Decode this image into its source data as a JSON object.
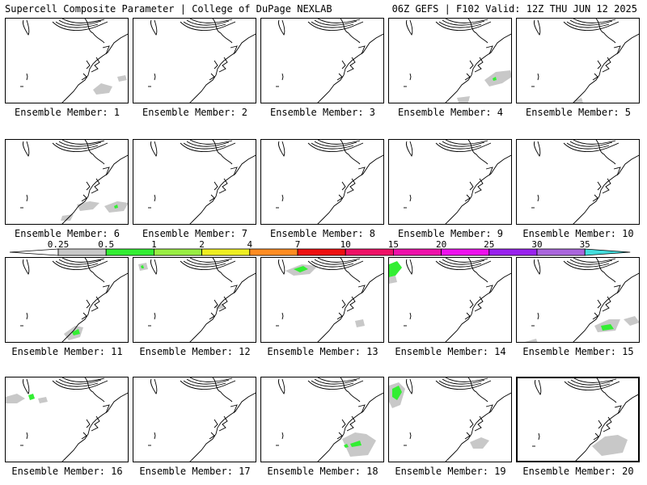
{
  "header": {
    "left": "Supercell Composite Parameter | College of DuPage NEXLAB",
    "right": "06Z GEFS | F102 Valid: 12Z THU JUN 12 2025"
  },
  "legend": {
    "ticks": [
      "0.25",
      "0.5",
      "1",
      "2",
      "4",
      "7",
      "10",
      "15",
      "20",
      "25",
      "30",
      "35"
    ],
    "colors": [
      "#c8c8c8",
      "#33ee33",
      "#99ee44",
      "#eeee22",
      "#ff8c22",
      "#ee1111",
      "#ee1166",
      "#ee11aa",
      "#ee11ee",
      "#9922ee",
      "#aa66dd",
      "#44dddd"
    ]
  },
  "caption_prefix": "Ensemble Member: ",
  "selected_member": 20,
  "members": [
    {
      "label": "Ensemble Member: 1",
      "blobs": [
        {
          "c": "gray",
          "pts": [
            [
              108,
              88
            ],
            [
              118,
              80
            ],
            [
              132,
              84
            ],
            [
              128,
              92
            ],
            [
              112,
              94
            ]
          ]
        },
        {
          "c": "gray",
          "pts": [
            [
              138,
              72
            ],
            [
              148,
              70
            ],
            [
              150,
              76
            ],
            [
              140,
              78
            ]
          ]
        }
      ]
    },
    {
      "label": "Ensemble Member: 2",
      "blobs": []
    },
    {
      "label": "Ensemble Member: 3",
      "blobs": []
    },
    {
      "label": "Ensemble Member: 4",
      "blobs": [
        {
          "c": "gray",
          "pts": [
            [
              118,
              76
            ],
            [
              132,
              66
            ],
            [
              150,
              64
            ],
            [
              152,
              72
            ],
            [
              140,
              80
            ],
            [
              124,
              84
            ]
          ]
        },
        {
          "c": "green",
          "pts": [
            [
              128,
              74
            ],
            [
              132,
              72
            ],
            [
              133,
              76
            ],
            [
              129,
              77
            ]
          ]
        },
        {
          "c": "gray",
          "pts": [
            [
              84,
              98
            ],
            [
              100,
              96
            ],
            [
              98,
              104
            ],
            [
              86,
              104
            ]
          ]
        }
      ]
    },
    {
      "label": "Ensemble Member: 5",
      "blobs": [
        {
          "c": "gray",
          "pts": [
            [
              70,
              102
            ],
            [
              80,
              98
            ],
            [
              82,
              104
            ],
            [
              72,
              105
            ]
          ]
        }
      ]
    },
    {
      "label": "Ensemble Member: 6",
      "blobs": [
        {
          "c": "gray",
          "pts": [
            [
              88,
              80
            ],
            [
              104,
              76
            ],
            [
              116,
              78
            ],
            [
              108,
              86
            ],
            [
              92,
              88
            ]
          ]
        },
        {
          "c": "gray",
          "pts": [
            [
              122,
              82
            ],
            [
              138,
              76
            ],
            [
              152,
              78
            ],
            [
              146,
              88
            ],
            [
              128,
              90
            ]
          ]
        },
        {
          "c": "green",
          "pts": [
            [
              134,
              82
            ],
            [
              138,
              80
            ],
            [
              139,
              84
            ],
            [
              135,
              85
            ]
          ]
        },
        {
          "c": "gray",
          "pts": [
            [
              70,
              94
            ],
            [
              84,
              92
            ],
            [
              80,
              100
            ],
            [
              68,
              100
            ]
          ]
        }
      ]
    },
    {
      "label": "Ensemble Member: 7",
      "blobs": []
    },
    {
      "label": "Ensemble Member: 8",
      "blobs": []
    },
    {
      "label": "Ensemble Member: 9",
      "blobs": []
    },
    {
      "label": "Ensemble Member: 10",
      "blobs": []
    },
    {
      "label": "Ensemble Member: 11",
      "blobs": [
        {
          "c": "gray",
          "pts": [
            [
              72,
              94
            ],
            [
              86,
              84
            ],
            [
              96,
              86
            ],
            [
              92,
              98
            ],
            [
              78,
              102
            ]
          ]
        },
        {
          "c": "green",
          "pts": [
            [
              82,
              92
            ],
            [
              90,
              88
            ],
            [
              92,
              94
            ],
            [
              84,
              96
            ]
          ]
        }
      ]
    },
    {
      "label": "Ensemble Member: 12",
      "blobs": [
        {
          "c": "gray",
          "pts": [
            [
              6,
              8
            ],
            [
              16,
              6
            ],
            [
              18,
              14
            ],
            [
              8,
              16
            ]
          ]
        },
        {
          "c": "green",
          "pts": [
            [
              9,
              10
            ],
            [
              12,
              9
            ],
            [
              13,
              13
            ],
            [
              10,
              13
            ]
          ]
        },
        {
          "c": "gray",
          "pts": [
            [
              100,
              60
            ],
            [
              110,
              56
            ],
            [
              112,
              62
            ],
            [
              104,
              64
            ]
          ]
        }
      ]
    },
    {
      "label": "Ensemble Member: 13",
      "blobs": [
        {
          "c": "gray",
          "pts": [
            [
              30,
              16
            ],
            [
              50,
              8
            ],
            [
              70,
              10
            ],
            [
              60,
              20
            ],
            [
              40,
              22
            ]
          ]
        },
        {
          "c": "green",
          "pts": [
            [
              40,
              14
            ],
            [
              52,
              10
            ],
            [
              58,
              14
            ],
            [
              48,
              18
            ]
          ]
        },
        {
          "c": "gray",
          "pts": [
            [
              116,
              78
            ],
            [
              126,
              76
            ],
            [
              128,
              84
            ],
            [
              118,
              86
            ]
          ]
        }
      ]
    },
    {
      "label": "Ensemble Member: 14",
      "blobs": [
        {
          "c": "green",
          "pts": [
            [
              0,
              8
            ],
            [
              10,
              4
            ],
            [
              16,
              12
            ],
            [
              8,
              22
            ],
            [
              0,
              24
            ]
          ]
        },
        {
          "c": "gray",
          "pts": [
            [
              0,
              24
            ],
            [
              8,
              22
            ],
            [
              10,
              30
            ],
            [
              0,
              32
            ]
          ]
        }
      ]
    },
    {
      "label": "Ensemble Member: 15",
      "blobs": [
        {
          "c": "gray",
          "pts": [
            [
              96,
              84
            ],
            [
              114,
              76
            ],
            [
              128,
              76
            ],
            [
              122,
              90
            ],
            [
              100,
              92
            ]
          ]
        },
        {
          "c": "green",
          "pts": [
            [
              104,
              84
            ],
            [
              116,
              82
            ],
            [
              120,
              88
            ],
            [
              106,
              90
            ]
          ]
        },
        {
          "c": "gray",
          "pts": [
            [
              132,
              76
            ],
            [
              146,
              72
            ],
            [
              152,
              80
            ],
            [
              140,
              84
            ]
          ]
        },
        {
          "c": "gray",
          "pts": [
            [
              10,
              104
            ],
            [
              24,
              100
            ],
            [
              26,
              106
            ],
            [
              12,
              106
            ]
          ]
        }
      ]
    },
    {
      "label": "Ensemble Member: 16",
      "blobs": [
        {
          "c": "gray",
          "pts": [
            [
              0,
              24
            ],
            [
              14,
              20
            ],
            [
              24,
              26
            ],
            [
              14,
              32
            ],
            [
              0,
              32
            ]
          ]
        },
        {
          "c": "green",
          "pts": [
            [
              28,
              22
            ],
            [
              34,
              20
            ],
            [
              36,
              26
            ],
            [
              30,
              28
            ]
          ]
        },
        {
          "c": "gray",
          "pts": [
            [
              40,
              26
            ],
            [
              50,
              24
            ],
            [
              52,
              30
            ],
            [
              42,
              32
            ]
          ]
        }
      ]
    },
    {
      "label": "Ensemble Member: 17",
      "blobs": []
    },
    {
      "label": "Ensemble Member: 18",
      "blobs": [
        {
          "c": "gray",
          "pts": [
            [
              100,
              76
            ],
            [
              116,
              68
            ],
            [
              130,
              70
            ],
            [
              142,
              78
            ],
            [
              132,
              96
            ],
            [
              110,
              98
            ]
          ]
        },
        {
          "c": "green",
          "pts": [
            [
              110,
              82
            ],
            [
              122,
              78
            ],
            [
              124,
              84
            ],
            [
              112,
              86
            ]
          ]
        },
        {
          "c": "green",
          "pts": [
            [
              102,
              84
            ],
            [
              106,
              82
            ],
            [
              108,
              86
            ],
            [
              104,
              87
            ]
          ]
        }
      ]
    },
    {
      "label": "Ensemble Member: 19",
      "blobs": [
        {
          "c": "gray",
          "pts": [
            [
              0,
              10
            ],
            [
              12,
              6
            ],
            [
              20,
              14
            ],
            [
              14,
              34
            ],
            [
              4,
              38
            ],
            [
              0,
              30
            ]
          ]
        },
        {
          "c": "green",
          "pts": [
            [
              4,
              14
            ],
            [
              12,
              10
            ],
            [
              16,
              18
            ],
            [
              10,
              28
            ],
            [
              4,
              24
            ]
          ]
        },
        {
          "c": "gray",
          "pts": [
            [
              100,
              80
            ],
            [
              114,
              74
            ],
            [
              124,
              78
            ],
            [
              116,
              88
            ],
            [
              104,
              88
            ]
          ]
        }
      ]
    },
    {
      "label": "Ensemble Member: 20",
      "blobs": [
        {
          "c": "gray",
          "pts": [
            [
              92,
              84
            ],
            [
              108,
              72
            ],
            [
              124,
              70
            ],
            [
              136,
              76
            ],
            [
              130,
              92
            ],
            [
              104,
              96
            ]
          ]
        }
      ]
    }
  ]
}
